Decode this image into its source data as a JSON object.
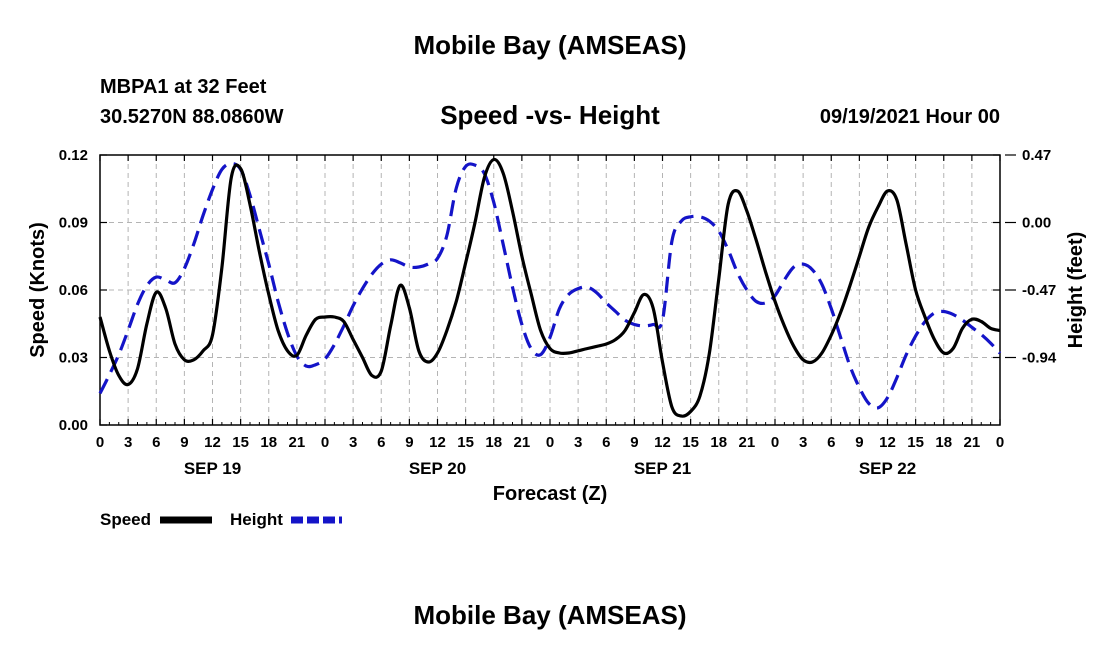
{
  "header": {
    "title": "Mobile Bay (AMSEAS)",
    "station": "MBPA1 at 32 Feet",
    "coords": "30.5270N  88.0860W",
    "subtitle": "Speed -vs- Height",
    "issued": "09/19/2021 Hour 00"
  },
  "footer": {
    "title": "Mobile Bay (AMSEAS)"
  },
  "colors": {
    "speed": "#000000",
    "height": "#1414c8",
    "grid": "#b4b4b4"
  },
  "chart_data": {
    "type": "line",
    "xlabel": "Forecast (Z)",
    "ylabel": "Speed (Knots)",
    "y2label": "Height (feet)",
    "xlim": [
      0,
      96
    ],
    "ylim": [
      0,
      0.12
    ],
    "y2lim": [
      -1.41,
      0.47
    ],
    "x_ticks": [
      0,
      3,
      6,
      9,
      12,
      15,
      18,
      21,
      24,
      27,
      30,
      33,
      36,
      39,
      42,
      45,
      48,
      51,
      54,
      57,
      60,
      63,
      66,
      69,
      72,
      75,
      78,
      81,
      84,
      87,
      90,
      93,
      96
    ],
    "x_tick_labels": [
      "0",
      "3",
      "6",
      "9",
      "12",
      "15",
      "18",
      "21",
      "0",
      "3",
      "6",
      "9",
      "12",
      "15",
      "18",
      "21",
      "0",
      "3",
      "6",
      "9",
      "12",
      "15",
      "18",
      "21",
      "0",
      "3",
      "6",
      "9",
      "12",
      "15",
      "18",
      "21",
      "0"
    ],
    "date_labels": [
      {
        "x": 12,
        "label": "SEP 19"
      },
      {
        "x": 36,
        "label": "SEP 20"
      },
      {
        "x": 60,
        "label": "SEP 21"
      },
      {
        "x": 84,
        "label": "SEP 22"
      }
    ],
    "y_ticks": [
      0,
      0.03,
      0.06,
      0.09,
      0.12
    ],
    "y_tick_labels": [
      "0.00",
      "0.03",
      "0.06",
      "0.09",
      "0.12"
    ],
    "y2_ticks": [
      -0.94,
      -0.47,
      0.0,
      0.47
    ],
    "y2_tick_labels": [
      "-0.94",
      "-0.47",
      "0.00",
      "0.47"
    ],
    "series": [
      {
        "name": "Speed",
        "axis": "left",
        "style": "solid",
        "x": [
          0,
          1,
          2,
          3,
          4,
          5,
          6,
          7,
          8,
          9,
          10,
          11,
          12,
          13,
          14,
          15,
          16,
          17,
          18,
          19,
          20,
          21,
          22,
          23,
          24,
          25,
          26,
          27,
          28,
          29,
          30,
          31,
          32,
          33,
          34,
          35,
          36,
          37,
          38,
          39,
          40,
          41,
          42,
          43,
          44,
          45,
          46,
          47,
          48,
          49,
          50,
          51,
          52,
          53,
          54,
          55,
          56,
          57,
          58,
          59,
          60,
          61,
          62,
          63,
          64,
          65,
          66,
          67,
          68,
          69,
          70,
          71,
          72,
          73,
          74,
          75,
          76,
          77,
          78,
          79,
          80,
          81,
          82,
          83,
          84,
          85,
          86,
          87,
          88,
          89,
          90,
          91,
          92,
          93,
          94,
          95,
          96
        ],
        "values": [
          0.048,
          0.033,
          0.022,
          0.018,
          0.025,
          0.045,
          0.059,
          0.052,
          0.036,
          0.029,
          0.029,
          0.033,
          0.04,
          0.07,
          0.11,
          0.114,
          0.098,
          0.077,
          0.058,
          0.042,
          0.033,
          0.031,
          0.04,
          0.047,
          0.048,
          0.048,
          0.046,
          0.038,
          0.03,
          0.022,
          0.024,
          0.044,
          0.062,
          0.052,
          0.033,
          0.028,
          0.032,
          0.042,
          0.055,
          0.072,
          0.09,
          0.11,
          0.118,
          0.112,
          0.095,
          0.075,
          0.058,
          0.042,
          0.034,
          0.032,
          0.032,
          0.033,
          0.034,
          0.035,
          0.036,
          0.038,
          0.042,
          0.05,
          0.058,
          0.052,
          0.028,
          0.008,
          0.004,
          0.006,
          0.013,
          0.032,
          0.065,
          0.098,
          0.104,
          0.095,
          0.082,
          0.068,
          0.055,
          0.044,
          0.035,
          0.029,
          0.028,
          0.032,
          0.04,
          0.05,
          0.062,
          0.075,
          0.088,
          0.097,
          0.104,
          0.1,
          0.08,
          0.06,
          0.048,
          0.038,
          0.032,
          0.034,
          0.043,
          0.047,
          0.046,
          0.043,
          0.042
        ]
      },
      {
        "name": "Height",
        "axis": "right",
        "style": "dashed",
        "x": [
          0,
          1,
          2,
          3,
          4,
          5,
          6,
          7,
          8,
          9,
          10,
          11,
          12,
          13,
          14,
          15,
          16,
          17,
          18,
          19,
          20,
          21,
          22,
          23,
          24,
          25,
          26,
          27,
          28,
          29,
          30,
          31,
          32,
          33,
          34,
          35,
          36,
          37,
          38,
          39,
          40,
          41,
          42,
          43,
          44,
          45,
          46,
          47,
          48,
          49,
          50,
          51,
          52,
          53,
          54,
          55,
          56,
          57,
          58,
          59,
          60,
          61,
          62,
          63,
          64,
          65,
          66,
          67,
          68,
          69,
          70,
          71,
          72,
          73,
          74,
          75,
          76,
          77,
          78,
          79,
          80,
          81,
          82,
          83,
          84,
          85,
          86,
          87,
          88,
          89,
          90,
          91,
          92,
          93,
          94,
          95,
          96
        ],
        "values": [
          -1.19,
          -1.06,
          -0.92,
          -0.75,
          -0.57,
          -0.44,
          -0.38,
          -0.4,
          -0.42,
          -0.32,
          -0.15,
          0.05,
          0.23,
          0.37,
          0.41,
          0.37,
          0.19,
          -0.05,
          -0.29,
          -0.55,
          -0.77,
          -0.93,
          -1.0,
          -0.99,
          -0.95,
          -0.85,
          -0.72,
          -0.58,
          -0.46,
          -0.36,
          -0.29,
          -0.26,
          -0.28,
          -0.31,
          -0.31,
          -0.29,
          -0.25,
          -0.09,
          0.24,
          0.39,
          0.4,
          0.34,
          0.14,
          -0.15,
          -0.45,
          -0.71,
          -0.88,
          -0.92,
          -0.8,
          -0.6,
          -0.5,
          -0.46,
          -0.45,
          -0.49,
          -0.56,
          -0.62,
          -0.68,
          -0.71,
          -0.72,
          -0.71,
          -0.68,
          -0.13,
          0.01,
          0.04,
          0.04,
          0.01,
          -0.06,
          -0.19,
          -0.35,
          -0.47,
          -0.55,
          -0.56,
          -0.51,
          -0.4,
          -0.31,
          -0.29,
          -0.33,
          -0.43,
          -0.6,
          -0.8,
          -1.0,
          -1.15,
          -1.26,
          -1.29,
          -1.22,
          -1.08,
          -0.92,
          -0.79,
          -0.69,
          -0.63,
          -0.62,
          -0.64,
          -0.68,
          -0.73,
          -0.78,
          -0.84,
          -0.91
        ]
      }
    ],
    "legend": [
      {
        "label": "Speed",
        "style": "solid"
      },
      {
        "label": "Height",
        "style": "dashed"
      }
    ]
  }
}
